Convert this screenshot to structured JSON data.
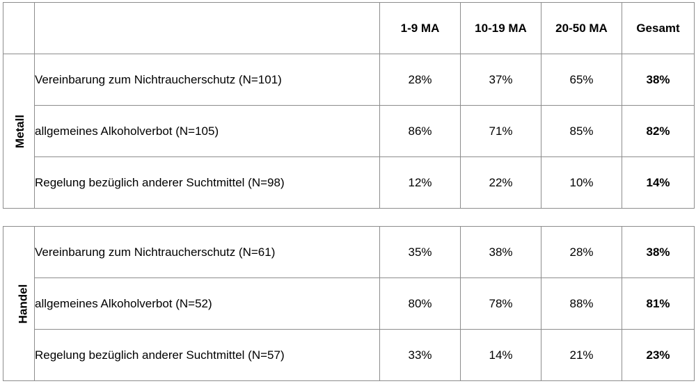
{
  "columns": {
    "c1": "1-9 MA",
    "c2": "10-19 MA",
    "c3": "20-50 MA",
    "total": "Gesamt"
  },
  "sections": [
    {
      "name": "Metall",
      "rows": [
        {
          "label": "Vereinbarung zum Nichtraucherschutz (N=101)",
          "c1": "28%",
          "c2": "37%",
          "c3": "65%",
          "total": "38%"
        },
        {
          "label": "allgemeines Alkoholverbot (N=105)",
          "c1": "86%",
          "c2": "71%",
          "c3": "85%",
          "total": "82%"
        },
        {
          "label": "Regelung bezüglich anderer Suchtmittel (N=98)",
          "c1": "12%",
          "c2": "22%",
          "c3": "10%",
          "total": "14%"
        }
      ]
    },
    {
      "name": "Handel",
      "rows": [
        {
          "label": "Vereinbarung zum Nichtraucherschutz (N=61)",
          "c1": "35%",
          "c2": "38%",
          "c3": "28%",
          "total": "38%"
        },
        {
          "label": "allgemeines Alkoholverbot (N=52)",
          "c1": "80%",
          "c2": "78%",
          "c3": "88%",
          "total": "81%"
        },
        {
          "label": "Regelung bezüglich anderer Suchtmittel (N=57)",
          "c1": "33%",
          "c2": "14%",
          "c3": "21%",
          "total": "23%"
        }
      ]
    }
  ]
}
